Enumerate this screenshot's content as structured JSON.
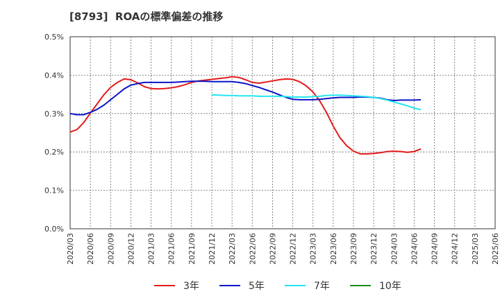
{
  "chart_data": {
    "type": "line",
    "title": "[8793]  ROAの標準偏差の推移",
    "y_ticks": [
      "0.0%",
      "0.1%",
      "0.2%",
      "0.3%",
      "0.4%",
      "0.5%"
    ],
    "ylim": [
      0,
      0.5
    ],
    "x_ticks": [
      "2020/03",
      "2020/06",
      "2020/09",
      "2020/12",
      "2021/03",
      "2021/06",
      "2021/09",
      "2021/12",
      "2022/03",
      "2022/06",
      "2022/09",
      "2022/12",
      "2023/03",
      "2023/06",
      "2023/09",
      "2023/12",
      "2024/03",
      "2024/06",
      "2024/09",
      "2024/12",
      "2025/03",
      "2025/06"
    ],
    "grid": true,
    "legend_position": "bottom",
    "series": [
      {
        "name": "3年",
        "color": "#e31a1c",
        "values": [
          0.252,
          0.258,
          0.276,
          0.301,
          0.325,
          0.349,
          0.368,
          0.381,
          0.39,
          0.388,
          0.38,
          0.37,
          0.365,
          0.364,
          0.365,
          0.367,
          0.37,
          0.375,
          0.381,
          0.385,
          0.387,
          0.389,
          0.391,
          0.393,
          0.396,
          0.394,
          0.388,
          0.381,
          0.379,
          0.382,
          0.385,
          0.388,
          0.39,
          0.389,
          0.383,
          0.372,
          0.356,
          0.333,
          0.303,
          0.267,
          0.237,
          0.216,
          0.202,
          0.195,
          0.195,
          0.196,
          0.198,
          0.201,
          0.202,
          0.201,
          0.199,
          0.201,
          0.208
        ]
      },
      {
        "name": "5年",
        "color": "#0a14c8",
        "values": [
          0.3,
          0.297,
          0.297,
          0.303,
          0.311,
          0.322,
          0.336,
          0.35,
          0.364,
          0.374,
          0.378,
          0.381,
          0.381,
          0.381,
          0.381,
          0.381,
          0.382,
          0.383,
          0.384,
          0.384,
          0.384,
          0.383,
          0.383,
          0.383,
          0.383,
          0.381,
          0.378,
          0.373,
          0.368,
          0.362,
          0.356,
          0.349,
          0.342,
          0.337,
          0.336,
          0.336,
          0.336,
          0.337,
          0.339,
          0.341,
          0.342,
          0.342,
          0.342,
          0.343,
          0.343,
          0.342,
          0.34,
          0.336,
          0.334,
          0.335,
          0.335,
          0.335,
          0.336
        ]
      },
      {
        "name": "7年",
        "color": "#22e6f0",
        "values": [
          null,
          null,
          null,
          null,
          null,
          null,
          null,
          null,
          null,
          null,
          null,
          null,
          null,
          null,
          null,
          null,
          null,
          null,
          null,
          null,
          null,
          0.349,
          0.348,
          0.347,
          0.347,
          0.346,
          0.346,
          0.346,
          0.345,
          0.345,
          0.345,
          0.345,
          0.344,
          0.343,
          0.343,
          0.343,
          0.344,
          0.345,
          0.347,
          0.348,
          0.348,
          0.347,
          0.346,
          0.345,
          0.344,
          0.342,
          0.339,
          0.335,
          0.33,
          0.325,
          0.32,
          0.314,
          0.31
        ]
      },
      {
        "name": "10年",
        "color": "#1a8c1a",
        "values": []
      }
    ]
  }
}
